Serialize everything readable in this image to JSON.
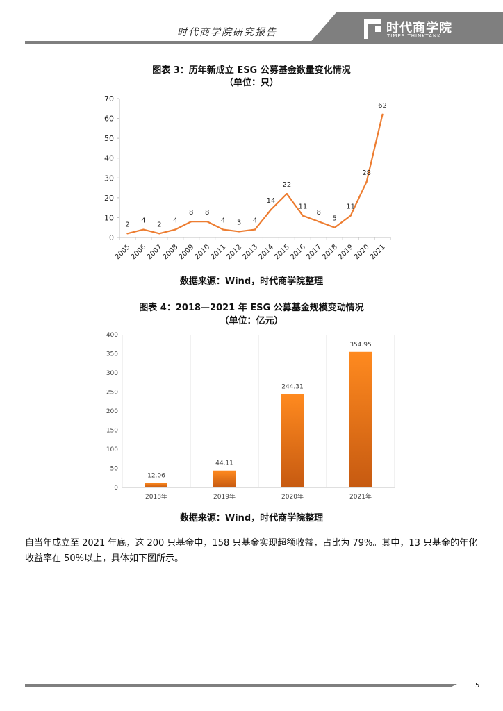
{
  "header": {
    "title": "时代商学院研究报告",
    "logo_name": "时代商学院",
    "logo_sub": "TIMES THINKTANK"
  },
  "chart3": {
    "title_line1": "图表 3：历年新成立 ESG 公募基金数量变化情况",
    "title_line2": "（单位：只）",
    "source": "数据来源：Wind，时代商学院整理"
  },
  "chart4": {
    "title_line1": "图表 4：2018—2021 年 ESG 公募基金规模变动情况",
    "title_line2": "（单位：亿元）",
    "source": "数据来源：Wind，时代商学院整理"
  },
  "paragraph": "自当年成立至 2021 年底，这 200 只基金中，158 只基金实现超额收益，占比为 79%。其中，13 只基金的年化收益率在 50%以上，具体如下图所示。",
  "page_number": "5",
  "colors": {
    "line": "#ed7d31",
    "bar_light": "#ff8a1f",
    "bar_dark": "#c65a11",
    "rule": "#7f7f7f"
  },
  "chart_data": [
    {
      "type": "line",
      "x": [
        "2005",
        "2006",
        "2007",
        "2008",
        "2009",
        "2010",
        "2011",
        "2012",
        "2013",
        "2014",
        "2015",
        "2016",
        "2017",
        "2018",
        "2019",
        "2020",
        "2021"
      ],
      "values": [
        2,
        4,
        2,
        4,
        8,
        8,
        4,
        3,
        4,
        14,
        22,
        11,
        8,
        5,
        11,
        28,
        62
      ],
      "ylim": [
        0,
        70
      ],
      "yticks": [
        0,
        10,
        20,
        30,
        40,
        50,
        60,
        70
      ],
      "grid": false,
      "title": "图表 3：历年新成立 ESG 公募基金数量变化情况"
    },
    {
      "type": "bar",
      "categories": [
        "2018年",
        "2019年",
        "2020年",
        "2021年"
      ],
      "values": [
        12.06,
        44.11,
        244.31,
        354.95
      ],
      "labels": [
        "12.06",
        "44.11",
        "244.31",
        "354.95"
      ],
      "ylim": [
        0,
        400
      ],
      "yticks": [
        0,
        50,
        100,
        150,
        200,
        250,
        300,
        350,
        400
      ],
      "grid": true,
      "title": "图表 4：2018—2021 年 ESG 公募基金规模变动情况"
    }
  ]
}
